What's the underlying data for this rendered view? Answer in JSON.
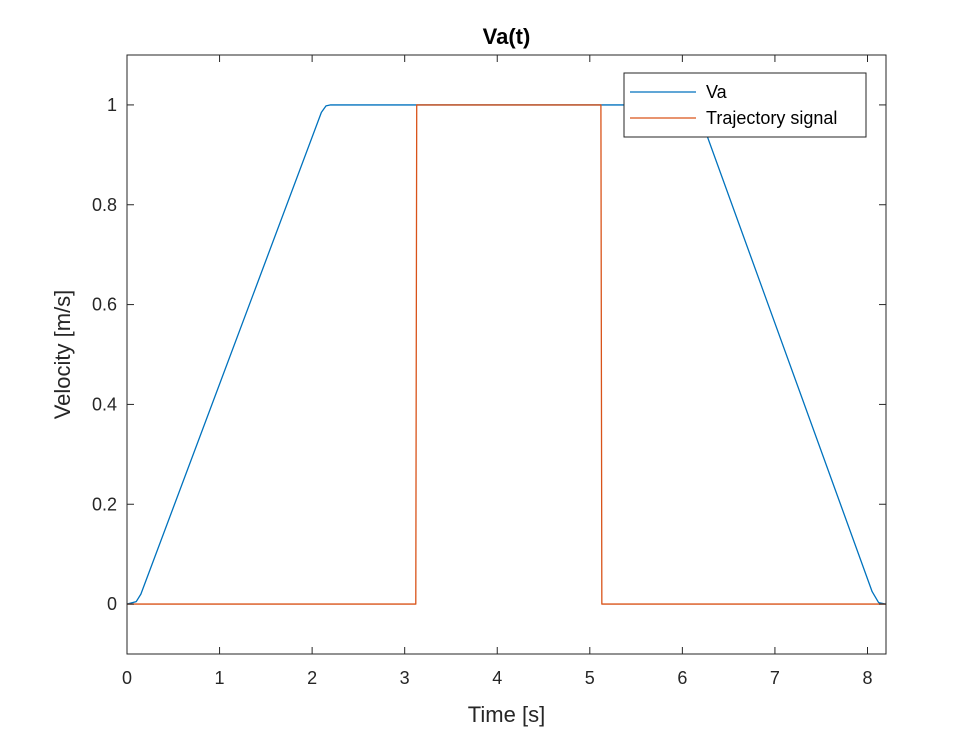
{
  "chart_data": {
    "type": "line",
    "title": "Va(t)",
    "xlabel": "Time [s]",
    "ylabel": "Velocity [m/s]",
    "xlim": [
      0,
      8.2
    ],
    "ylim": [
      -0.1,
      1.1
    ],
    "xticks": [
      0,
      1,
      2,
      3,
      4,
      5,
      6,
      7,
      8
    ],
    "yticks": [
      0,
      0.2,
      0.4,
      0.6,
      0.8,
      1
    ],
    "xtick_labels": [
      "0",
      "1",
      "2",
      "3",
      "4",
      "5",
      "6",
      "7",
      "8"
    ],
    "ytick_labels": [
      "0",
      "0.2",
      "0.4",
      "0.6",
      "0.8",
      "1"
    ],
    "grid": false,
    "legend_position": "top-right",
    "series": [
      {
        "name": "Va",
        "color": "#0072BD",
        "x": [
          0,
          0.1,
          0.15,
          2.1,
          2.15,
          2.2,
          6.1,
          6.15,
          8.05,
          8.12,
          8.2
        ],
        "y": [
          0,
          0.005,
          0.02,
          0.985,
          0.998,
          1,
          1,
          0.998,
          0.025,
          0.003,
          0
        ]
      },
      {
        "name": "Trajectory signal",
        "color": "#D95319",
        "x": [
          0,
          3.12,
          3.13,
          5.12,
          5.13,
          8.2
        ],
        "y": [
          0,
          0,
          1,
          1,
          0,
          0
        ]
      }
    ]
  }
}
